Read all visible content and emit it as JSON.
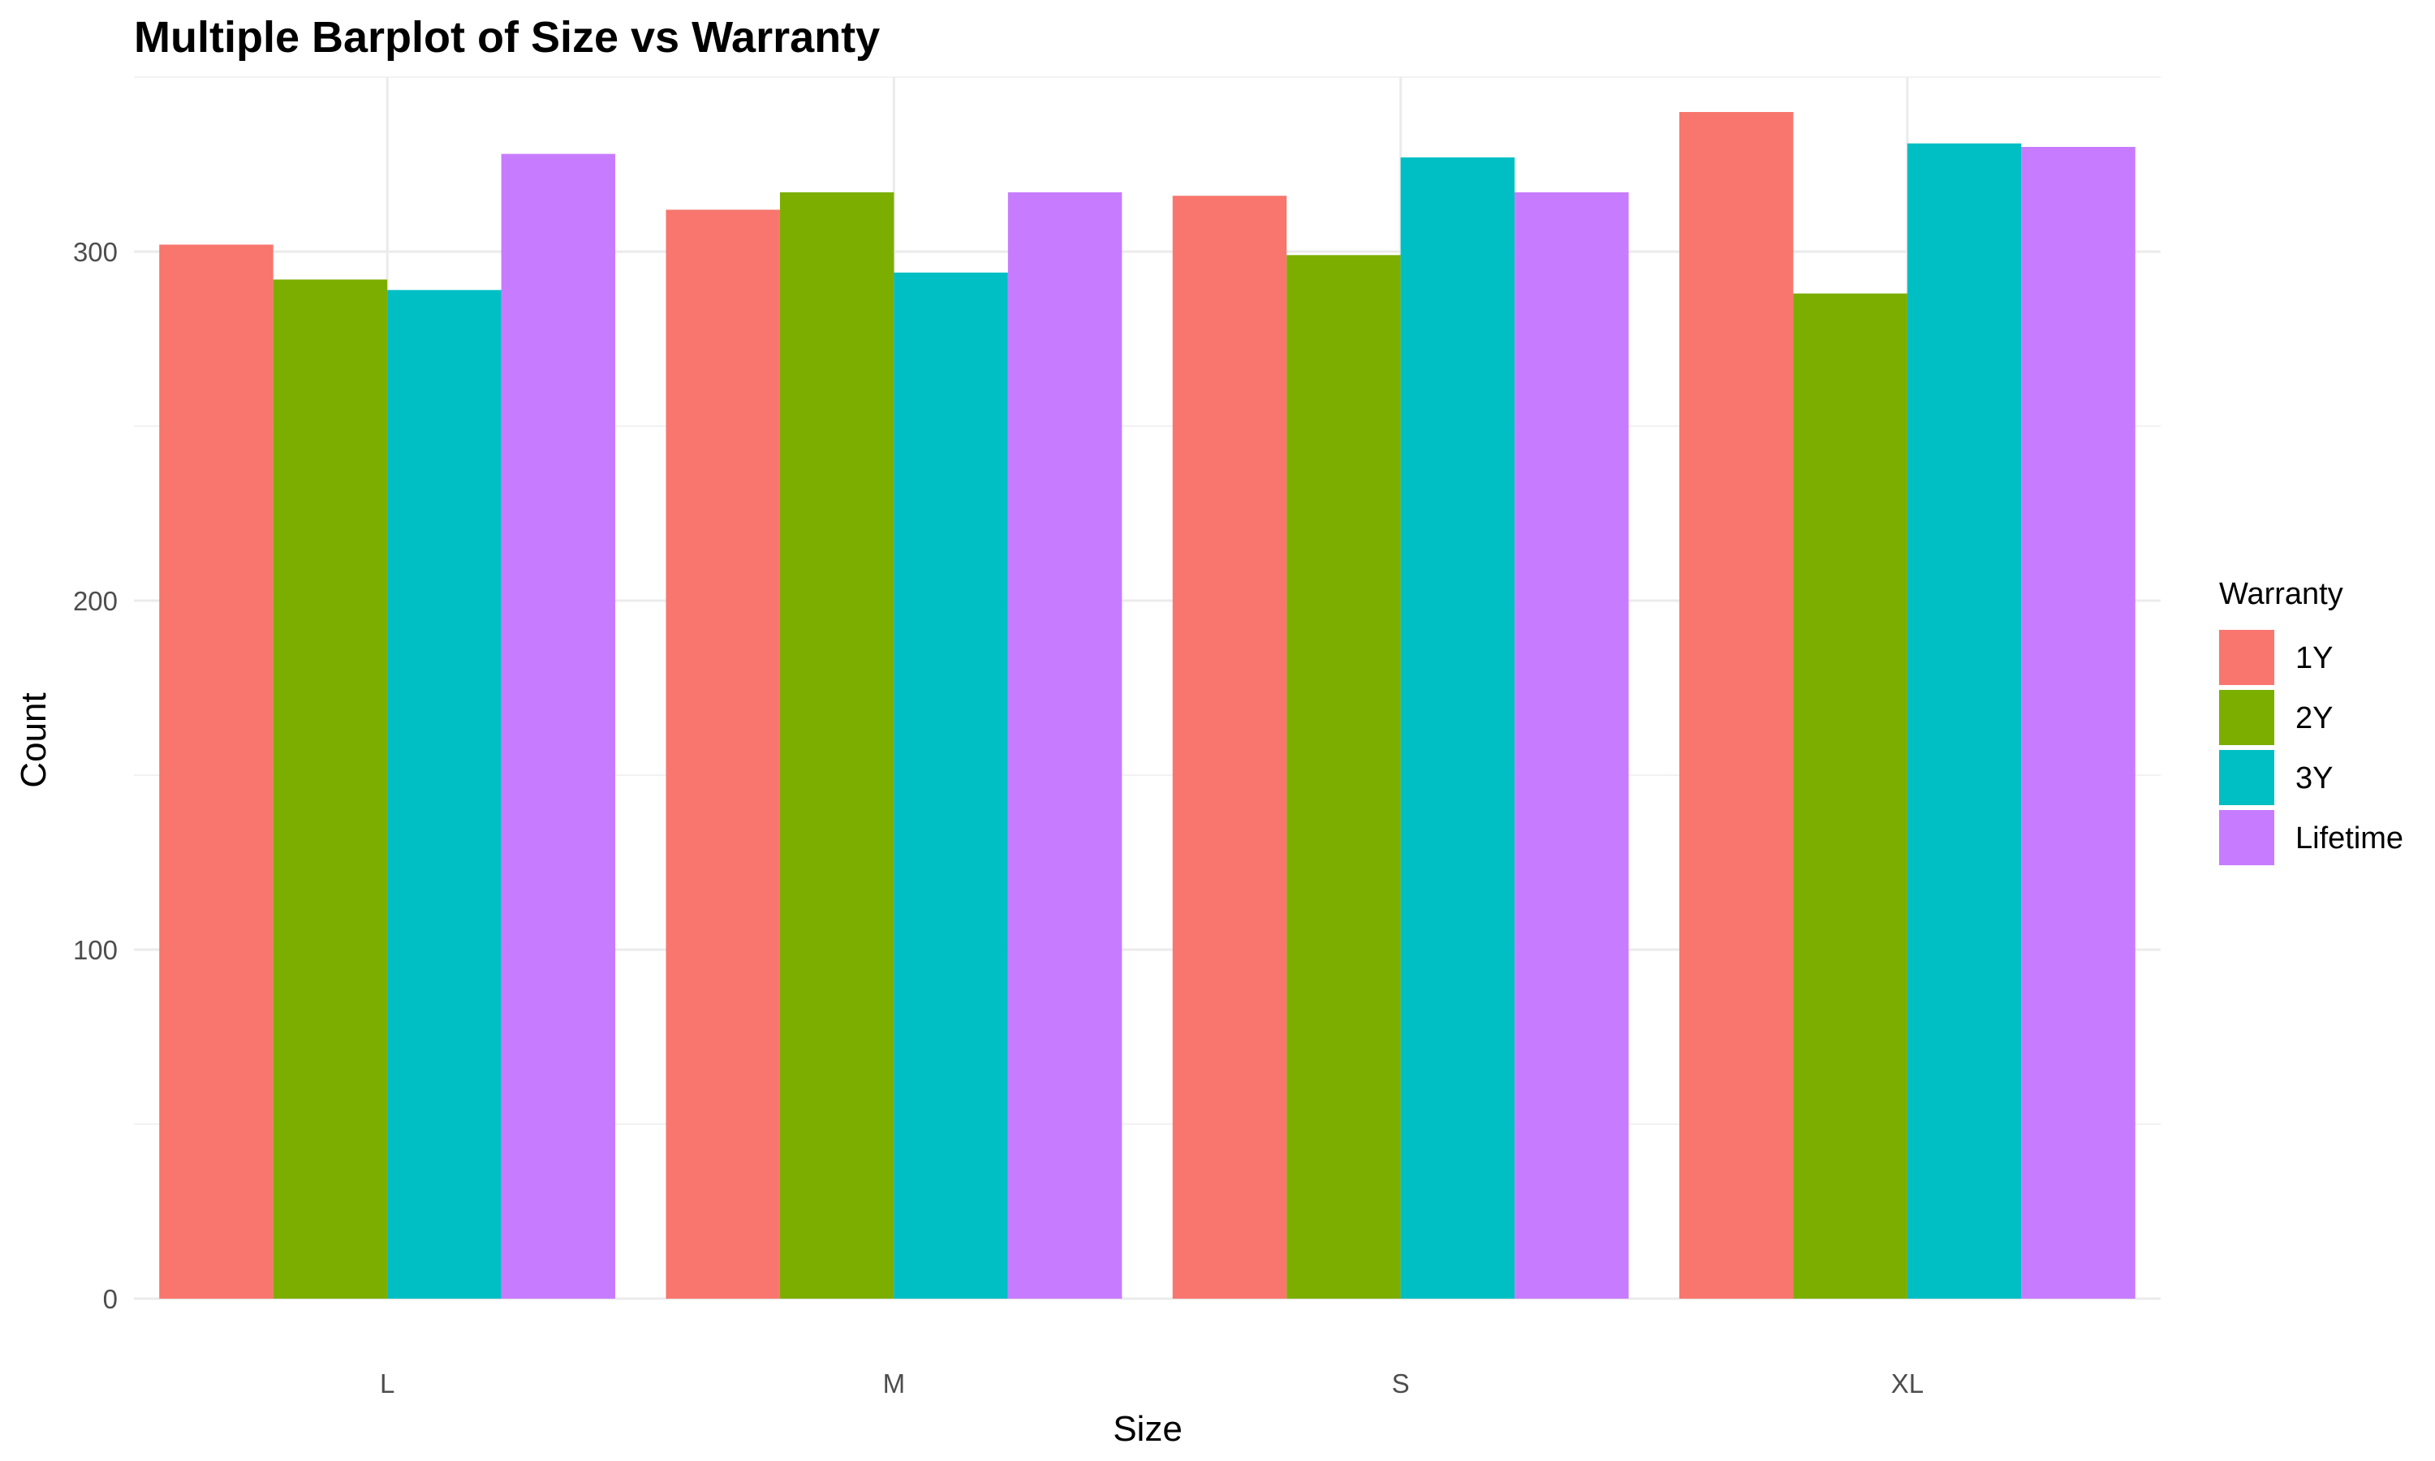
{
  "chart_data": {
    "type": "bar",
    "title": "Multiple Barplot of Size vs Warranty",
    "xlabel": "Size",
    "ylabel": "Count",
    "categories": [
      "L",
      "M",
      "S",
      "XL"
    ],
    "ylim": [
      0,
      350
    ],
    "yticks": [
      "0",
      "100",
      "200",
      "300"
    ],
    "ytick_values": [
      0,
      100,
      200,
      300
    ],
    "grid": true,
    "legend": {
      "title": "Warranty",
      "placement": "right"
    },
    "series": [
      {
        "name": "1Y",
        "color": "#F8766D",
        "values": [
          302,
          312,
          316,
          340
        ]
      },
      {
        "name": "2Y",
        "color": "#7CAE00",
        "values": [
          292,
          317,
          299,
          288
        ]
      },
      {
        "name": "3Y",
        "color": "#00BFC4",
        "values": [
          289,
          294,
          327,
          331
        ]
      },
      {
        "name": "Lifetime",
        "color": "#C77CFF",
        "values": [
          328,
          317,
          317,
          330
        ]
      }
    ]
  }
}
